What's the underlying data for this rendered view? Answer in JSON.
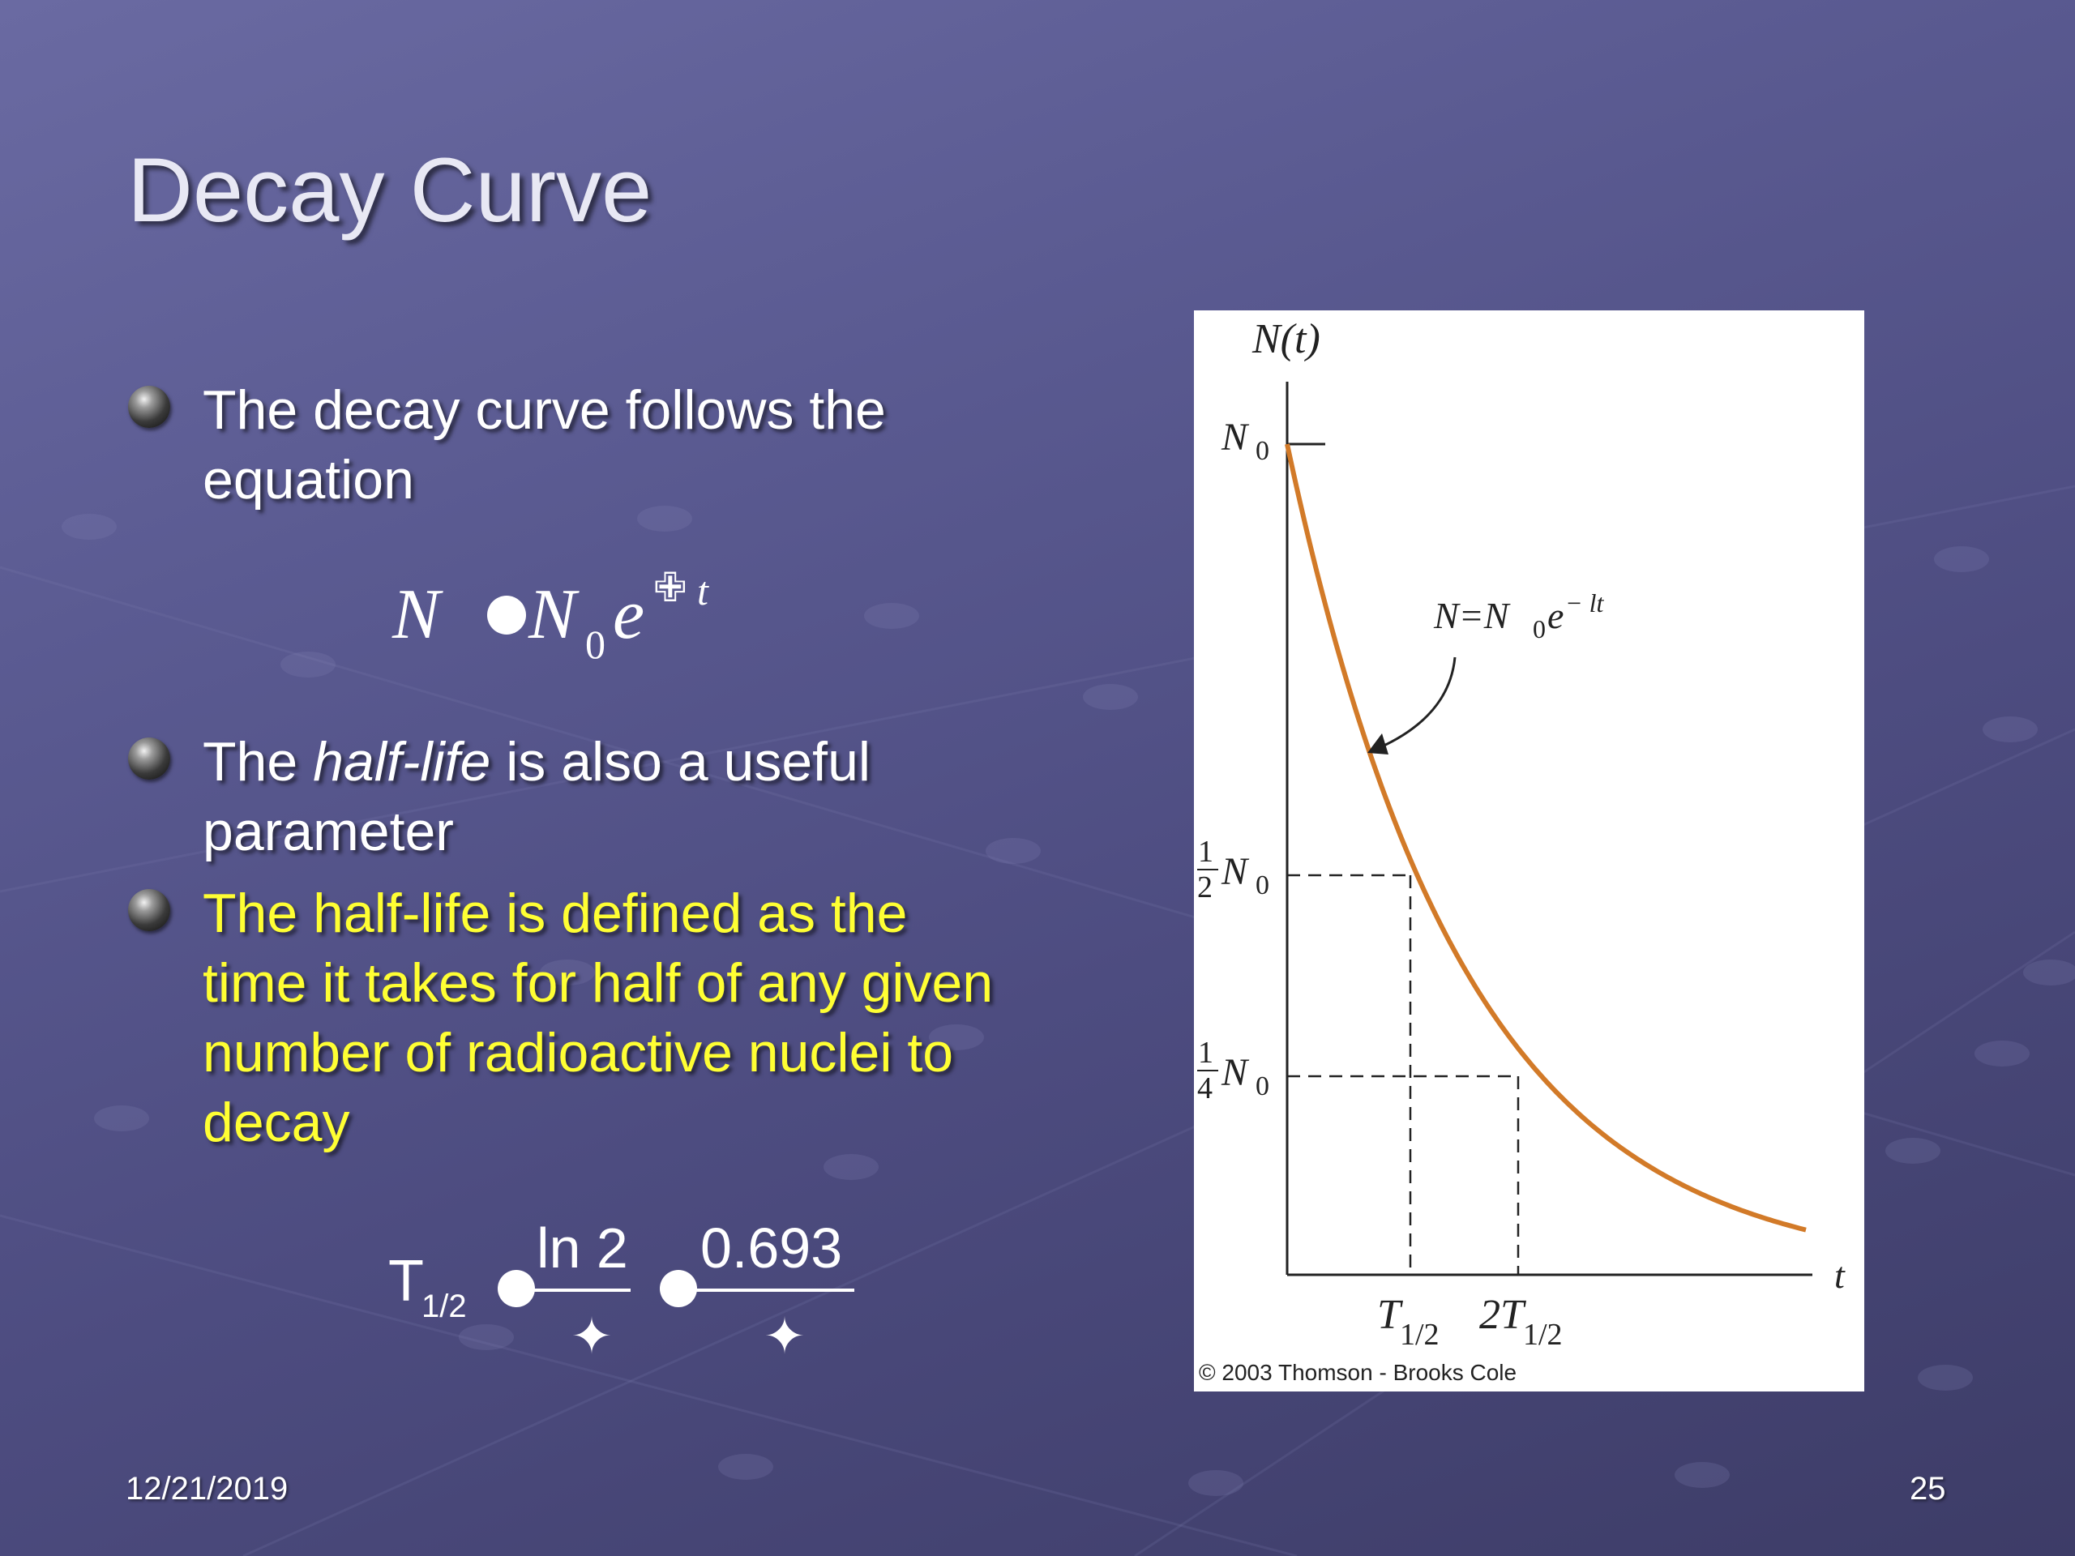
{
  "slide": {
    "title": "Decay Curve",
    "bullets": [
      {
        "text": "The decay curve follows the equation",
        "color": "#ffffff"
      },
      {
        "before": "The ",
        "italic": "half-life",
        "after": " is also a useful parameter",
        "color": "#ffffff"
      },
      {
        "text": "The half-life is defined as the time it takes for half of any given number of radioactive nuclei to decay",
        "color": "#ffff33"
      }
    ],
    "decay_equation": {
      "lhs": "N",
      "base": "N",
      "base_subscript": "0",
      "exp_base": "e",
      "exponent_glyph": "✙",
      "exponent_var": "t"
    },
    "halflife_formula": {
      "lhs": "T",
      "lhs_subscript": "1/2",
      "numerator_1": "ln 2",
      "numerator_2": "0.693",
      "denominator_glyph": "✦"
    },
    "footer": {
      "date": "12/21/2019",
      "page_number": "25"
    }
  },
  "figure": {
    "y_axis_label": "N(t)",
    "x_axis_label": "t",
    "n0_label": "N",
    "n0_subscript": "0",
    "half_label_num": "1",
    "half_label_den": "2",
    "quarter_label_num": "1",
    "quarter_label_den": "4",
    "curve_label_lhs": "N=N",
    "curve_label_sub": "0",
    "curve_label_e": "e",
    "curve_label_exp": "− lt",
    "t_half_label": "T",
    "t_half_sub": "1/2",
    "two_t_half_label": "2T",
    "two_t_half_sub": "1/2",
    "copyright": "© 2003 Thomson - Brooks Cole",
    "curve_color": "#d27a28",
    "chart_data": {
      "type": "line",
      "x_label": "t",
      "y_label": "N(t)",
      "series": [
        {
          "x": [
            "0",
            "T1/2",
            "2T1/2"
          ],
          "y": [
            "N0",
            "1/2 N0",
            "1/4 N0"
          ]
        }
      ],
      "x_ticks": [
        "T1/2",
        "2T1/2"
      ],
      "y_ticks": [
        "N0",
        "1/2 N0",
        "1/4 N0"
      ],
      "equation": "N=N0e−lt"
    }
  },
  "theme": {
    "background": "#5a5a91",
    "title_color": "#e8e8f4",
    "highlight_color": "#ffff33"
  }
}
